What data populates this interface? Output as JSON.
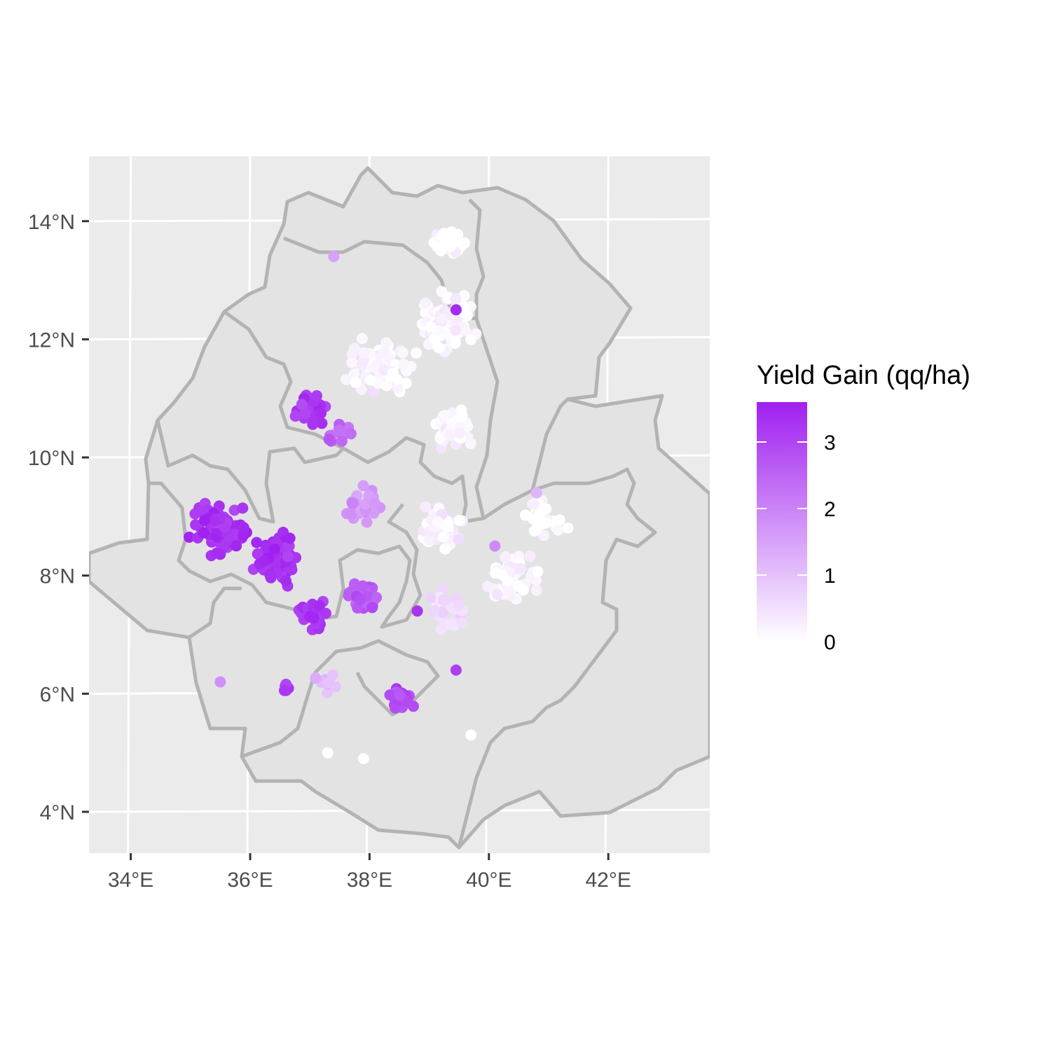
{
  "chart_data": {
    "type": "scatter",
    "map": "point map of yield gain over region boundaries",
    "xlim": [
      33.3,
      43.7
    ],
    "ylim": [
      3.3,
      15.1
    ],
    "x_ticks": [
      34,
      36,
      38,
      40,
      42
    ],
    "y_ticks": [
      4,
      6,
      8,
      10,
      12,
      14
    ],
    "x_tick_labels": [
      "34°E",
      "36°E",
      "38°E",
      "40°E",
      "42°E"
    ],
    "y_tick_labels": [
      "4°N",
      "6°N",
      "8°N",
      "10°N",
      "12°N",
      "14°N"
    ],
    "grid": true,
    "panel_background": "#ebebeb",
    "region_fill": "#e3e3e3",
    "region_border": "#b3b3b3",
    "legend": {
      "title": "Yield Gain (qq/ha)",
      "position": "right",
      "low_color": "#ffffff",
      "high_color": "#a020f0",
      "range": [
        0,
        3.6
      ],
      "breaks": [
        0,
        1,
        2,
        3
      ],
      "labels": [
        "0",
        "1",
        "2",
        "3"
      ]
    },
    "clusters": [
      {
        "lon": 37.0,
        "lat": 10.8,
        "spread": 0.35,
        "value": 3.2,
        "count": 40
      },
      {
        "lon": 35.5,
        "lat": 8.8,
        "spread": 0.55,
        "value": 3.3,
        "count": 85
      },
      {
        "lon": 36.5,
        "lat": 8.3,
        "spread": 0.55,
        "value": 3.3,
        "count": 75
      },
      {
        "lon": 37.1,
        "lat": 7.3,
        "spread": 0.35,
        "value": 3.2,
        "count": 35
      },
      {
        "lon": 37.9,
        "lat": 7.6,
        "spread": 0.3,
        "value": 2.6,
        "count": 55
      },
      {
        "lon": 38.5,
        "lat": 5.9,
        "spread": 0.28,
        "value": 2.9,
        "count": 35
      },
      {
        "lon": 37.5,
        "lat": 10.4,
        "spread": 0.3,
        "value": 2.4,
        "count": 12
      },
      {
        "lon": 37.9,
        "lat": 9.2,
        "spread": 0.45,
        "value": 1.7,
        "count": 30
      },
      {
        "lon": 39.3,
        "lat": 12.3,
        "spread": 0.6,
        "value": 0.1,
        "count": 90
      },
      {
        "lon": 39.3,
        "lat": 13.7,
        "spread": 0.35,
        "value": 0.05,
        "count": 40
      },
      {
        "lon": 38.2,
        "lat": 11.5,
        "spread": 0.7,
        "value": 0.15,
        "count": 70
      },
      {
        "lon": 39.4,
        "lat": 10.5,
        "spread": 0.4,
        "value": 0.1,
        "count": 60
      },
      {
        "lon": 39.2,
        "lat": 8.8,
        "spread": 0.45,
        "value": 0.2,
        "count": 60
      },
      {
        "lon": 40.4,
        "lat": 8.0,
        "spread": 0.55,
        "value": 0.15,
        "count": 50
      },
      {
        "lon": 40.9,
        "lat": 9.0,
        "spread": 0.5,
        "value": 0.05,
        "count": 25
      },
      {
        "lon": 39.3,
        "lat": 7.4,
        "spread": 0.45,
        "value": 0.6,
        "count": 30
      },
      {
        "lon": 37.3,
        "lat": 6.2,
        "spread": 0.25,
        "value": 1.2,
        "count": 10
      },
      {
        "lon": 36.6,
        "lat": 6.1,
        "spread": 0.12,
        "value": 3.0,
        "count": 8
      }
    ],
    "extra_points": [
      {
        "lon": 39.45,
        "lat": 12.5,
        "value": 3.4
      },
      {
        "lon": 39.45,
        "lat": 6.4,
        "value": 3.1
      },
      {
        "lon": 35.5,
        "lat": 6.2,
        "value": 1.8
      },
      {
        "lon": 37.4,
        "lat": 13.4,
        "value": 1.5
      },
      {
        "lon": 38.8,
        "lat": 7.4,
        "value": 3.3
      },
      {
        "lon": 39.7,
        "lat": 5.3,
        "value": 0.0
      },
      {
        "lon": 37.9,
        "lat": 4.9,
        "value": 0.0
      },
      {
        "lon": 37.3,
        "lat": 5.0,
        "value": 0.0
      },
      {
        "lon": 40.8,
        "lat": 9.4,
        "value": 1.2
      },
      {
        "lon": 40.1,
        "lat": 8.5,
        "value": 1.9
      }
    ]
  }
}
